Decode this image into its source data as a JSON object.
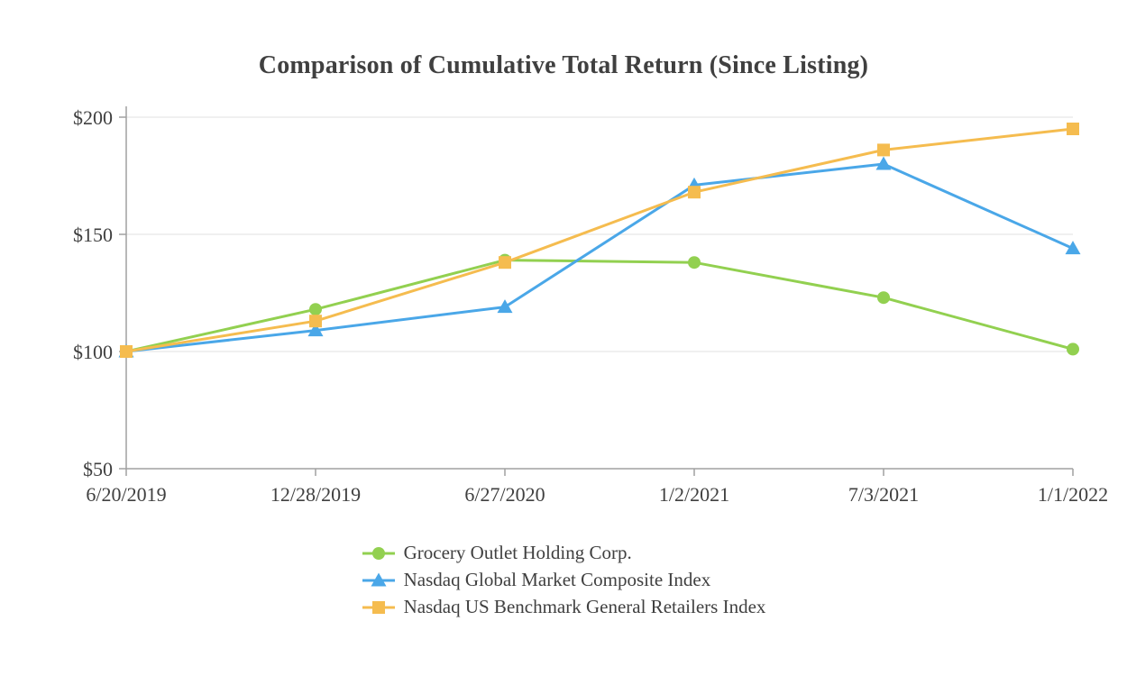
{
  "chart_data": {
    "type": "line",
    "title": "Comparison of Cumulative Total Return (Since Listing)",
    "x_labels": [
      "6/20/2019",
      "12/28/2019",
      "6/27/2020",
      "1/2/2021",
      "7/3/2021",
      "1/1/2022"
    ],
    "y_ticks": [
      50,
      100,
      150,
      200
    ],
    "y_tick_labels": [
      "$50",
      "$100",
      "$150",
      "$200"
    ],
    "ylim": [
      50,
      200
    ],
    "grid": "horizontal",
    "legend_position": "bottom",
    "series": [
      {
        "name": "Grocery Outlet Holding Corp.",
        "marker": "circle",
        "color": "#92D050",
        "values": [
          100,
          118,
          139,
          138,
          123,
          101
        ]
      },
      {
        "name": "Nasdaq Global Market Composite Index",
        "marker": "triangle",
        "color": "#4AA7E8",
        "values": [
          100,
          109,
          119,
          171,
          180,
          144
        ]
      },
      {
        "name": "Nasdaq US Benchmark General Retailers Index",
        "marker": "square",
        "color": "#F5BC4F",
        "values": [
          100,
          113,
          138,
          168,
          186,
          195
        ]
      }
    ],
    "axis_color": "#A0A0A0",
    "grid_color": "#E6E6E6"
  }
}
